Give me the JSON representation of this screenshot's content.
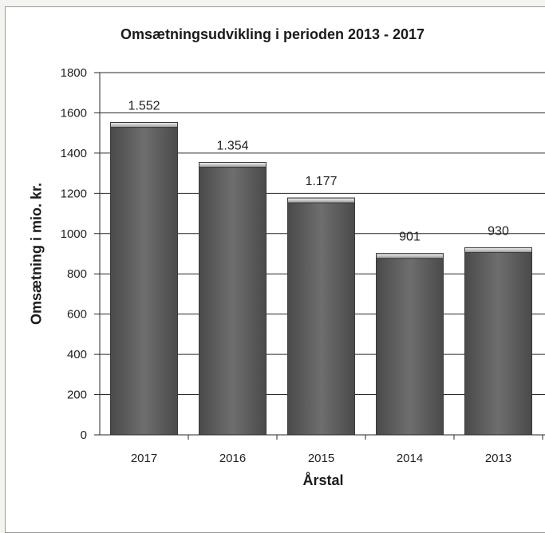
{
  "chart_data": {
    "type": "bar",
    "title": "Omsætningsudvikling i perioden 2013 - 2017",
    "xlabel": "Årstal",
    "ylabel": "Omsætning i mio. kr.",
    "categories": [
      "2017",
      "2016",
      "2015",
      "2014",
      "2013"
    ],
    "values": [
      1552,
      1354,
      1177,
      901,
      930
    ],
    "data_labels": [
      "1.552",
      "1.354",
      "1.177",
      "901",
      "930"
    ],
    "ylim": [
      0,
      1800
    ],
    "yticks": [
      0,
      200,
      400,
      600,
      800,
      1000,
      1200,
      1400,
      1600,
      1800
    ],
    "grid": true,
    "legend": "none",
    "bar_color": "#6b6b6b"
  }
}
